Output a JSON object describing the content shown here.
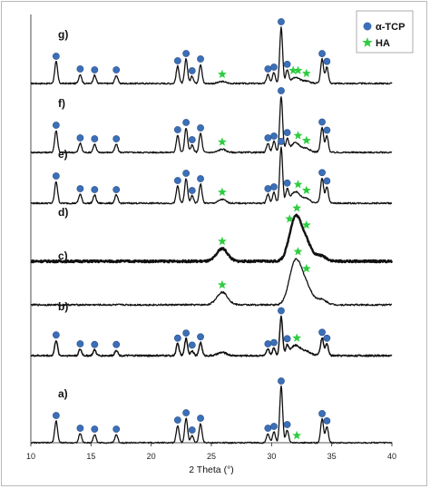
{
  "chart_data": {
    "type": "line",
    "xlabel": "2 Theta (°)",
    "ylabel": "",
    "xlim": [
      10,
      40
    ],
    "x_ticks": [
      "10",
      "15",
      "20",
      "25",
      "30",
      "35",
      "40"
    ],
    "grid": false,
    "legend_position": "top-right",
    "legend": [
      {
        "name": "α-TCP",
        "marker": "circle",
        "color": "#3b6fb8"
      },
      {
        "name": "HA",
        "marker": "star",
        "color": "#2ecc40"
      }
    ],
    "alpha_tcp_peaks": [
      {
        "x": 12.1,
        "h": 24
      },
      {
        "x": 14.1,
        "h": 10
      },
      {
        "x": 15.3,
        "h": 9
      },
      {
        "x": 17.1,
        "h": 9
      },
      {
        "x": 22.2,
        "h": 19
      },
      {
        "x": 22.9,
        "h": 27
      },
      {
        "x": 23.4,
        "h": 8
      },
      {
        "x": 24.1,
        "h": 21
      },
      {
        "x": 29.7,
        "h": 10
      },
      {
        "x": 30.2,
        "h": 12
      },
      {
        "x": 30.8,
        "h": 62
      },
      {
        "x": 31.3,
        "h": 14
      },
      {
        "x": 34.2,
        "h": 26
      },
      {
        "x": 34.6,
        "h": 18
      }
    ],
    "ha_peaks": [
      {
        "x": 25.9,
        "h": 14
      },
      {
        "x": 31.8,
        "h": 28
      },
      {
        "x": 32.2,
        "h": 25
      },
      {
        "x": 32.9,
        "h": 18
      },
      {
        "x": 34.1,
        "h": 6
      }
    ],
    "series": [
      {
        "label": "g)",
        "tcp": 1.0,
        "ha": 0.15,
        "ha_width": 0.3,
        "noise": 0.8,
        "stroke": 1.3,
        "tcp_markers": [
          12.1,
          14.1,
          15.3,
          17.1,
          22.2,
          22.9,
          23.4,
          24.1,
          29.7,
          30.2,
          30.8,
          31.3,
          34.2,
          34.6
        ],
        "ha_markers": [
          25.9,
          31.8,
          32.2,
          32.9
        ]
      },
      {
        "label": "f)",
        "tcp": 1.0,
        "ha": 0.25,
        "ha_width": 0.3,
        "noise": 0.8,
        "stroke": 1.3,
        "tcp_markers": [
          12.1,
          14.1,
          15.3,
          17.1,
          22.2,
          22.9,
          23.4,
          24.1,
          29.7,
          30.2,
          30.8,
          31.3,
          34.2,
          34.6
        ],
        "ha_markers": [
          25.9,
          32.2,
          32.9
        ]
      },
      {
        "label": "e)",
        "tcp": 1.0,
        "ha": 0.3,
        "ha_width": 0.3,
        "noise": 0.8,
        "stroke": 1.3,
        "tcp_markers": [
          12.1,
          14.1,
          15.3,
          17.1,
          22.2,
          22.9,
          23.4,
          24.1,
          29.7,
          30.2,
          30.8,
          31.3,
          34.2,
          34.6
        ],
        "ha_markers": [
          25.9,
          32.2,
          32.9
        ]
      },
      {
        "label": "d)",
        "tcp": 0.0,
        "ha": 1.0,
        "ha_width": 0.45,
        "noise": 1.1,
        "stroke": 2.4,
        "tcp_markers": [],
        "ha_markers": [
          25.9,
          31.5,
          32.1,
          32.9
        ]
      },
      {
        "label": "c)",
        "tcp": 0.0,
        "ha": 1.0,
        "ha_width": 0.45,
        "noise": 0.9,
        "stroke": 1.3,
        "tcp_markers": [],
        "ha_markers": [
          25.9,
          32.2,
          32.9
        ]
      },
      {
        "label": "b)",
        "tcp": 0.7,
        "ha": 0.25,
        "ha_width": 0.35,
        "noise": 0.9,
        "stroke": 1.5,
        "tcp_markers": [
          12.1,
          14.1,
          15.3,
          17.1,
          22.2,
          22.9,
          23.4,
          24.1,
          29.7,
          30.2,
          30.8,
          31.3,
          34.2,
          34.6
        ],
        "ha_markers": [
          32.1
        ]
      },
      {
        "label": "a)",
        "tcp": 1.0,
        "ha": 0.0,
        "ha_width": 0.3,
        "noise": 0.7,
        "stroke": 1.3,
        "tcp_markers": [
          12.1,
          14.1,
          15.3,
          17.1,
          22.2,
          22.9,
          23.4,
          24.1,
          29.7,
          30.2,
          30.8,
          31.3,
          34.2,
          34.6
        ],
        "ha_markers": [
          32.1
        ]
      }
    ]
  }
}
